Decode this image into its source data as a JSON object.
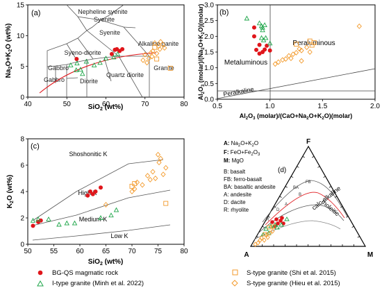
{
  "colors": {
    "bgqs": "#e0161b",
    "itype": "#1fa64a",
    "stype": "#f39a2b",
    "axis": "#000000",
    "field_line": "#444444",
    "trend_red": "#e0161b"
  },
  "chart_data": [
    {
      "id": "a",
      "type": "scatter",
      "panel_label": "(a)",
      "xlabel": "SiO2 (wt%)",
      "ylabel": "Na2O+K2O (wt%)",
      "xlim": [
        40,
        80
      ],
      "ylim": [
        0,
        15
      ],
      "xticks": [
        40,
        50,
        60,
        70,
        80
      ],
      "yticks": [
        0,
        5,
        10,
        15
      ],
      "field_labels": [
        "Nepheline syenite",
        "Syenite",
        "Syenite",
        "Alkaline ganite",
        "Syeno-diorite",
        "Gabbro",
        "Gabbro",
        "Diorite",
        "Quartz diorite",
        "Granite"
      ],
      "series": [
        {
          "name": "BG-QS magmatic rock",
          "marker": "filled-circle",
          "points": [
            [
              52.5,
              6.2
            ],
            [
              61.5,
              7.0
            ],
            [
              62.3,
              7.7
            ],
            [
              62.8,
              7.8
            ],
            [
              63.5,
              7.5
            ],
            [
              64.2,
              7.8
            ]
          ]
        },
        {
          "name": "I-type granite (Minh et al. 2022)",
          "marker": "triangle",
          "points": [
            [
              51,
              5.2
            ],
            [
              52.4,
              4.4
            ],
            [
              52.6,
              5.5
            ],
            [
              53.5,
              4.5
            ],
            [
              55,
              5.8
            ],
            [
              57,
              5.2
            ],
            [
              58.5,
              5.6
            ],
            [
              60,
              6.3
            ],
            [
              62,
              6.5
            ],
            [
              63,
              7.0
            ],
            [
              54,
              3.8
            ]
          ]
        },
        {
          "name": "S-type granite (Shi et al. 2015)",
          "marker": "square",
          "points": [
            [
              72.5,
              8.1
            ],
            [
              73.0,
              6.2
            ],
            [
              76.5,
              4.7
            ]
          ]
        },
        {
          "name": "S-type granite (Hieu et al. 2015)",
          "marker": "diamond",
          "points": [
            [
              69.5,
              6.0
            ],
            [
              70,
              6.9
            ],
            [
              70.5,
              5.6
            ],
            [
              71,
              6.3
            ],
            [
              71.5,
              7.2
            ],
            [
              72,
              7.5
            ],
            [
              72.5,
              8.8
            ],
            [
              73,
              7.1
            ],
            [
              73.5,
              8.3
            ],
            [
              74,
              9.0
            ],
            [
              74.5,
              8.6
            ],
            [
              75,
              8.0
            ],
            [
              73.8,
              7.8
            ],
            [
              71.8,
              6.6
            ]
          ]
        }
      ]
    },
    {
      "id": "b",
      "type": "scatter",
      "panel_label": "(b)",
      "xlabel": "Al2O3 (molar)/(CaO+Na2O+K2O)(molar)",
      "ylabel": "Al2O3 (molar)/(Na2O+K2O)(molar)",
      "xlim": [
        0.5,
        2.0
      ],
      "ylim": [
        0.0,
        3.0
      ],
      "xticks": [
        0.5,
        1.0,
        1.5,
        2.0
      ],
      "yticks": [
        0.0,
        0.5,
        1.0,
        1.5,
        2.0,
        2.5,
        3.0
      ],
      "field_labels": [
        "Metaluminous",
        "Peraluminous",
        "Peralkaline"
      ],
      "series": [
        {
          "name": "BG-QS magmatic rock",
          "marker": "filled-circle",
          "points": [
            [
              0.85,
              2.28
            ],
            [
              0.85,
              2.0
            ],
            [
              0.87,
              1.57
            ],
            [
              0.9,
              1.73
            ],
            [
              0.9,
              1.45
            ],
            [
              0.93,
              1.5
            ],
            [
              0.95,
              1.58
            ],
            [
              0.97,
              1.7
            ],
            [
              1.0,
              1.55
            ]
          ]
        },
        {
          "name": "I-type granite (Minh et al. 2022)",
          "marker": "triangle",
          "points": [
            [
              0.78,
              2.57
            ],
            [
              0.9,
              2.42
            ],
            [
              0.92,
              2.33
            ],
            [
              0.93,
              2.28
            ],
            [
              0.95,
              2.36
            ],
            [
              0.92,
              1.95
            ],
            [
              0.94,
              1.88
            ],
            [
              0.93,
              2.2
            ],
            [
              1.0,
              1.78
            ],
            [
              0.96,
              1.95
            ]
          ]
        },
        {
          "name": "S-type granite (Shi et al. 2015)",
          "marker": "square",
          "points": [
            [
              1.25,
              1.75
            ],
            [
              1.38,
              1.85
            ],
            [
              1.4,
              1.72
            ],
            [
              1.42,
              1.8
            ]
          ]
        },
        {
          "name": "S-type granite (Hieu et al. 2015)",
          "marker": "diamond",
          "points": [
            [
              1.05,
              1.12
            ],
            [
              1.08,
              1.18
            ],
            [
              1.12,
              1.25
            ],
            [
              1.15,
              1.28
            ],
            [
              1.18,
              1.38
            ],
            [
              1.2,
              1.3
            ],
            [
              1.22,
              1.43
            ],
            [
              1.25,
              1.48
            ],
            [
              1.28,
              1.6
            ],
            [
              1.3,
              1.55
            ],
            [
              1.3,
              1.22
            ],
            [
              1.35,
              1.65
            ],
            [
              1.38,
              1.5
            ],
            [
              1.85,
              2.32
            ]
          ]
        }
      ]
    },
    {
      "id": "c",
      "type": "scatter",
      "panel_label": "(c)",
      "xlabel": "SiO2 (wt%)",
      "ylabel": "K2O (wt%)",
      "xlim": [
        50,
        80
      ],
      "ylim": [
        0,
        8
      ],
      "xticks": [
        50,
        55,
        60,
        65,
        70,
        75,
        80
      ],
      "yticks": [
        0,
        2,
        4,
        6,
        8
      ],
      "field_labels": [
        "Shoshonitic K",
        "High K",
        "Medium K",
        "Low K"
      ],
      "series": [
        {
          "name": "BG-QS magmatic rock",
          "marker": "filled-circle",
          "points": [
            [
              51,
              1.4
            ],
            [
              52,
              1.7
            ],
            [
              52.5,
              1.8
            ],
            [
              61.5,
              3.7
            ],
            [
              62,
              4.0
            ],
            [
              62.5,
              3.8
            ],
            [
              63,
              4.0
            ],
            [
              64,
              4.3
            ]
          ]
        },
        {
          "name": "I-type granite (Minh et al. 2022)",
          "marker": "triangle",
          "points": [
            [
              51,
              1.8
            ],
            [
              52,
              1.9
            ],
            [
              54,
              1.9
            ],
            [
              56,
              1.5
            ],
            [
              57.5,
              1.6
            ],
            [
              59,
              1.6
            ],
            [
              64,
              2.0
            ],
            [
              66,
              2.2
            ],
            [
              67,
              2.6
            ]
          ]
        },
        {
          "name": "S-type granite (Shi et al. 2015)",
          "marker": "square",
          "points": [
            [
              70,
              4.4
            ],
            [
              70.5,
              4.6
            ],
            [
              76.5,
              3.1
            ]
          ]
        },
        {
          "name": "S-type granite (Hieu et al. 2015)",
          "marker": "diamond",
          "points": [
            [
              65,
              3.0
            ],
            [
              70,
              4.0
            ],
            [
              70.5,
              4.2
            ],
            [
              71,
              4.7
            ],
            [
              72,
              4.5
            ],
            [
              73,
              5.2
            ],
            [
              73.5,
              4.9
            ],
            [
              74,
              5.5
            ],
            [
              74.5,
              5.0
            ],
            [
              75,
              6.8
            ],
            [
              75.5,
              6.5
            ],
            [
              76,
              5.3
            ],
            [
              76.5,
              5.8
            ],
            [
              75.2,
              6.2
            ]
          ]
        }
      ]
    },
    {
      "id": "d",
      "type": "scatter",
      "panel_label": "(d)",
      "apex_labels": {
        "top": "F",
        "left": "A",
        "right": "M"
      },
      "curve_labels": [
        "FB",
        "BA",
        "B",
        "D",
        "A",
        "R",
        "tholeitic",
        "calc-alkaline"
      ],
      "legend_items": [
        {
          "key": "A:",
          "text": "Na2O+K2O"
        },
        {
          "key": "F:",
          "text": "FeO+Fe2O3"
        },
        {
          "key": "M:",
          "text": "MgO"
        },
        {
          "key": "",
          "text": "B: basalt"
        },
        {
          "key": "",
          "text": "FB: ferro-basalt"
        },
        {
          "key": "",
          "text": "BA: basaltic andesite"
        },
        {
          "key": "",
          "text": "A: andesite"
        },
        {
          "key": "",
          "text": "D: dacite"
        },
        {
          "key": "",
          "text": "R: rhyolite"
        }
      ]
    }
  ],
  "legend": {
    "items": [
      {
        "label": "BG-QS magmatic rock",
        "marker": "filled-circle"
      },
      {
        "label": "S-type granite (Shi et al. 2015)",
        "marker": "square"
      },
      {
        "label": "I-type granite (Minh et al. 2022)",
        "marker": "triangle"
      },
      {
        "label": "S-type granite (Hieu et al. 2015)",
        "marker": "diamond"
      }
    ]
  }
}
